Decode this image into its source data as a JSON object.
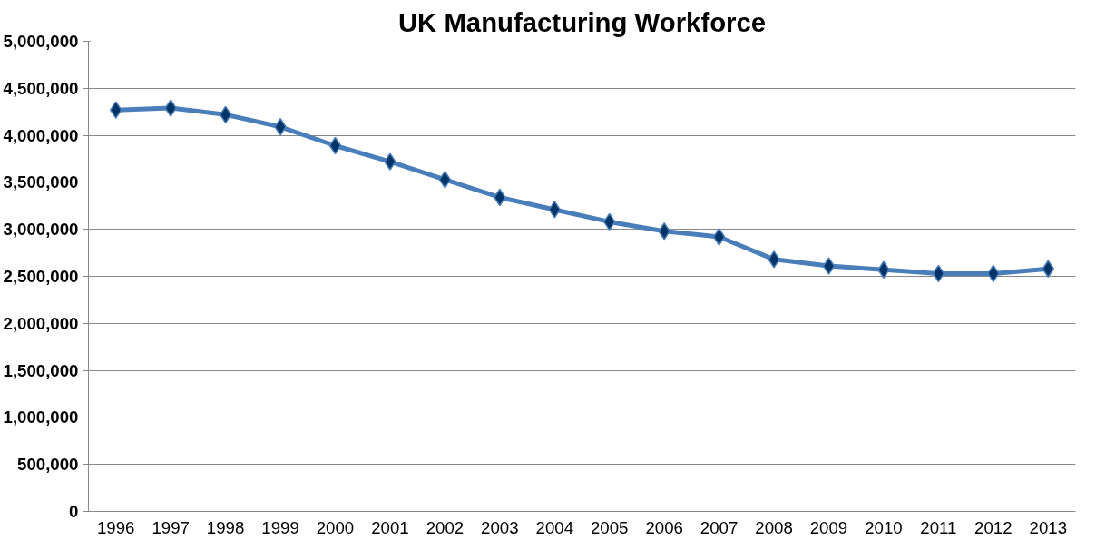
{
  "chart_data": {
    "type": "line",
    "title": "UK Manufacturing Workforce",
    "categories": [
      "1996",
      "1997",
      "1998",
      "1999",
      "2000",
      "2001",
      "2002",
      "2003",
      "2004",
      "2005",
      "2006",
      "2007",
      "2008",
      "2009",
      "2010",
      "2011",
      "2012",
      "2013"
    ],
    "series": [
      {
        "color": "#4a7ebb",
        "values": [
          4270000,
          4290000,
          4220000,
          4090000,
          3890000,
          3720000,
          3530000,
          3340000,
          3210000,
          3080000,
          2980000,
          2920000,
          2680000,
          2610000,
          2570000,
          2530000,
          2530000,
          2580000
        ]
      }
    ],
    "ylim": [
      0,
      5000000
    ],
    "yticks": [
      {
        "value": 0,
        "label": "0"
      },
      {
        "value": 500000,
        "label": "500,000"
      },
      {
        "value": 1000000,
        "label": "1,000,000"
      },
      {
        "value": 1500000,
        "label": "1,500,000"
      },
      {
        "value": 2000000,
        "label": "2,000,000"
      },
      {
        "value": 2500000,
        "label": "2,500,000"
      },
      {
        "value": 3000000,
        "label": "3,000,000"
      },
      {
        "value": 3500000,
        "label": "3,500,000"
      },
      {
        "value": 4000000,
        "label": "4,000,000"
      },
      {
        "value": 4500000,
        "label": "4,500,000"
      },
      {
        "value": 5000000,
        "label": "5,000,000"
      }
    ],
    "grid": "y",
    "marker": "diamond"
  }
}
